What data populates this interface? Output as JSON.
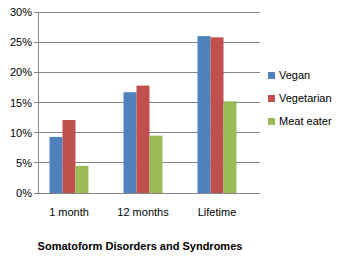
{
  "chart_data": {
    "type": "bar",
    "title": "Somatoform Disorders and Syndromes",
    "categories": [
      "1 month",
      "12 months",
      "Lifetime"
    ],
    "series": [
      {
        "name": "Vegan",
        "color": "#4f81bd",
        "values": [
          9.3,
          16.7,
          26.0
        ]
      },
      {
        "name": "Vegetarian",
        "color": "#c0504d",
        "values": [
          12.1,
          17.8,
          25.8
        ]
      },
      {
        "name": "Meat eater",
        "color": "#9bbb59",
        "values": [
          4.5,
          9.5,
          15.2
        ]
      }
    ],
    "ylim": [
      0,
      30
    ],
    "yticks": [
      {
        "value": 0,
        "label": "0%"
      },
      {
        "value": 5,
        "label": "5%"
      },
      {
        "value": 10,
        "label": "10%"
      },
      {
        "value": 15,
        "label": "15%"
      },
      {
        "value": 20,
        "label": "20%"
      },
      {
        "value": 25,
        "label": "25%"
      },
      {
        "value": 30,
        "label": "30%"
      }
    ],
    "grid": true,
    "legend": "right"
  }
}
